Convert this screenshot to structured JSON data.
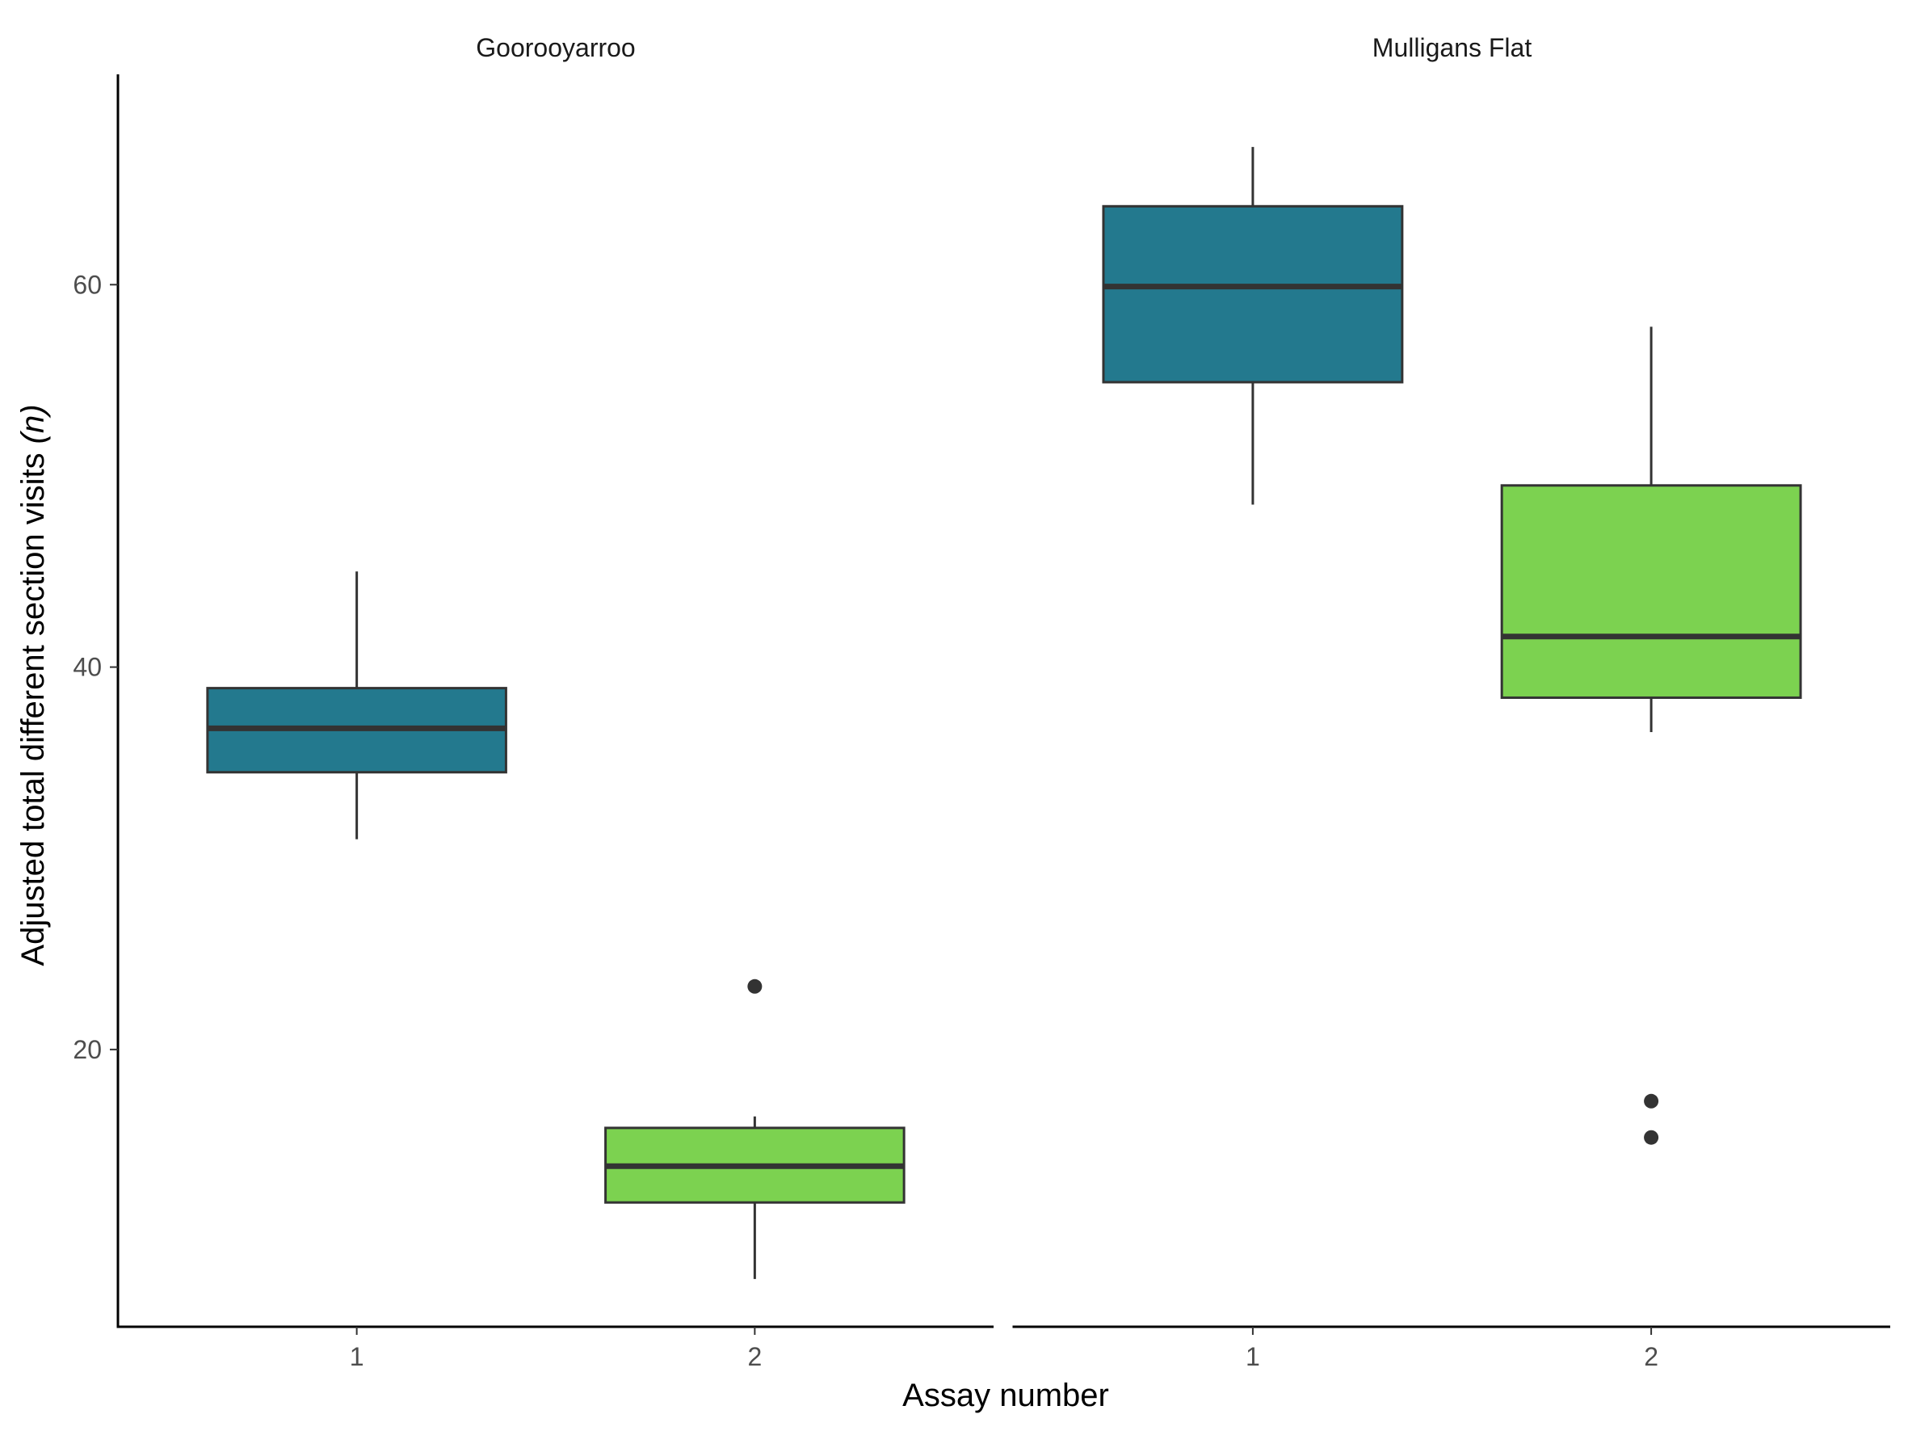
{
  "chart_data": {
    "type": "boxplot",
    "xlabel": "Assay number",
    "ylabel_main": "Adjusted total different section visits ",
    "ylabel_italic": "(n)",
    "y_ticks": [
      20,
      40,
      60
    ],
    "ylim": [
      5.5,
      71
    ],
    "grid": false,
    "legend": "none",
    "colors": {
      "assay_1": "#23798e",
      "assay_2": "#7cd250",
      "line": "#333333",
      "axis": "#000000"
    },
    "panels": [
      {
        "name": "Goorooyarroo",
        "categories": [
          "1",
          "2"
        ],
        "boxes": [
          {
            "assay": "1",
            "whisker_low": 31.0,
            "q1": 34.5,
            "median": 36.8,
            "q3": 38.9,
            "whisker_high": 45.0,
            "outliers": []
          },
          {
            "assay": "2",
            "whisker_low": 8.0,
            "q1": 12.0,
            "median": 13.9,
            "q3": 15.9,
            "whisker_high": 16.5,
            "outliers": [
              23.3
            ]
          }
        ]
      },
      {
        "name": "Mulligans Flat",
        "categories": [
          "1",
          "2"
        ],
        "boxes": [
          {
            "assay": "1",
            "whisker_low": 48.5,
            "q1": 54.9,
            "median": 59.9,
            "q3": 64.1,
            "whisker_high": 67.2,
            "outliers": []
          },
          {
            "assay": "2",
            "whisker_low": 36.6,
            "q1": 38.4,
            "median": 41.6,
            "q3": 49.5,
            "whisker_high": 57.8,
            "outliers": [
              17.3,
              15.4
            ]
          }
        ]
      }
    ]
  }
}
